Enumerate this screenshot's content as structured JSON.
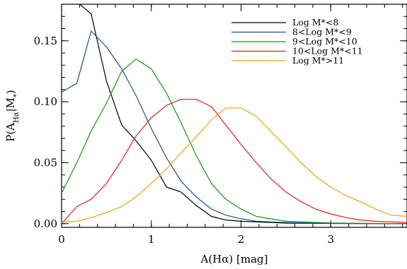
{
  "chart_data": {
    "type": "line",
    "xlabel": "A(Hα) [mag]",
    "ylabel": "P(A_Hα|M_*)",
    "xlim": [
      0,
      3.85
    ],
    "ylim": [
      -0.003,
      0.18
    ],
    "x_ticks": [
      {
        "value": 0,
        "label": "0"
      },
      {
        "value": 1,
        "label": "1"
      },
      {
        "value": 2,
        "label": "2"
      },
      {
        "value": 3,
        "label": "3"
      }
    ],
    "y_ticks": [
      {
        "value": 0.0,
        "label": "0.00"
      },
      {
        "value": 0.05,
        "label": "0.05"
      },
      {
        "value": 0.1,
        "label": "0.10"
      },
      {
        "value": 0.15,
        "label": "0.15"
      }
    ],
    "x_minor_step": 0.2,
    "y_minor_step": 0.01,
    "grid": false,
    "legend_position": "top-right",
    "series": [
      {
        "name": "Log M*<8",
        "color": "#000000",
        "points": [
          [
            0,
            0.182
          ],
          [
            0.17,
            0.182
          ],
          [
            0.33,
            0.172
          ],
          [
            0.5,
            0.117
          ],
          [
            0.67,
            0.081
          ],
          [
            0.83,
            0.068
          ],
          [
            1.0,
            0.052
          ],
          [
            1.17,
            0.03
          ],
          [
            1.33,
            0.026
          ],
          [
            1.5,
            0.015
          ],
          [
            1.67,
            0.006
          ],
          [
            1.83,
            0.003
          ],
          [
            2.0,
            0.002
          ],
          [
            2.5,
            0.0005
          ],
          [
            3.0,
            0.0002
          ],
          [
            3.85,
            0.0
          ]
        ]
      },
      {
        "name": "8<Log M*<9",
        "color": "#1f4e8c",
        "points": [
          [
            0,
            0.108
          ],
          [
            0.17,
            0.115
          ],
          [
            0.33,
            0.158
          ],
          [
            0.5,
            0.145
          ],
          [
            0.67,
            0.127
          ],
          [
            0.83,
            0.105
          ],
          [
            1.0,
            0.078
          ],
          [
            1.17,
            0.054
          ],
          [
            1.33,
            0.035
          ],
          [
            1.5,
            0.022
          ],
          [
            1.67,
            0.012
          ],
          [
            1.83,
            0.007
          ],
          [
            2.0,
            0.004
          ],
          [
            2.17,
            0.002
          ],
          [
            2.5,
            0.001
          ],
          [
            3.0,
            0.0003
          ],
          [
            3.85,
            0.0
          ]
        ]
      },
      {
        "name": "9<Log M*<10",
        "color": "#139613",
        "points": [
          [
            0,
            0.025
          ],
          [
            0.17,
            0.05
          ],
          [
            0.33,
            0.076
          ],
          [
            0.5,
            0.099
          ],
          [
            0.67,
            0.125
          ],
          [
            0.83,
            0.135
          ],
          [
            1.0,
            0.127
          ],
          [
            1.17,
            0.107
          ],
          [
            1.33,
            0.083
          ],
          [
            1.5,
            0.056
          ],
          [
            1.67,
            0.033
          ],
          [
            1.83,
            0.02
          ],
          [
            2.0,
            0.012
          ],
          [
            2.17,
            0.006
          ],
          [
            2.33,
            0.004
          ],
          [
            2.5,
            0.002
          ],
          [
            3.0,
            0.0006
          ],
          [
            3.85,
            0.0
          ]
        ]
      },
      {
        "name": "10<Log M*<11",
        "color": "#dd1f1f",
        "points": [
          [
            0,
            0.0
          ],
          [
            0.17,
            0.014
          ],
          [
            0.33,
            0.02
          ],
          [
            0.5,
            0.033
          ],
          [
            0.67,
            0.052
          ],
          [
            0.83,
            0.072
          ],
          [
            1.0,
            0.087
          ],
          [
            1.17,
            0.097
          ],
          [
            1.33,
            0.102
          ],
          [
            1.5,
            0.102
          ],
          [
            1.67,
            0.096
          ],
          [
            1.83,
            0.081
          ],
          [
            2.0,
            0.065
          ],
          [
            2.17,
            0.05
          ],
          [
            2.33,
            0.037
          ],
          [
            2.5,
            0.026
          ],
          [
            2.67,
            0.018
          ],
          [
            2.83,
            0.012
          ],
          [
            3.0,
            0.008
          ],
          [
            3.17,
            0.005
          ],
          [
            3.33,
            0.003
          ],
          [
            3.5,
            0.002
          ],
          [
            3.85,
            0.001
          ]
        ]
      },
      {
        "name": "Log M*>11",
        "color": "#f0a010",
        "points": [
          [
            0,
            0.001
          ],
          [
            0.17,
            0.002
          ],
          [
            0.33,
            0.005
          ],
          [
            0.5,
            0.009
          ],
          [
            0.67,
            0.014
          ],
          [
            0.83,
            0.022
          ],
          [
            1.0,
            0.033
          ],
          [
            1.17,
            0.045
          ],
          [
            1.33,
            0.058
          ],
          [
            1.5,
            0.071
          ],
          [
            1.67,
            0.085
          ],
          [
            1.83,
            0.095
          ],
          [
            2.0,
            0.095
          ],
          [
            2.17,
            0.088
          ],
          [
            2.33,
            0.076
          ],
          [
            2.5,
            0.063
          ],
          [
            2.67,
            0.05
          ],
          [
            2.83,
            0.039
          ],
          [
            3.0,
            0.03
          ],
          [
            3.17,
            0.023
          ],
          [
            3.33,
            0.018
          ],
          [
            3.5,
            0.012
          ],
          [
            3.67,
            0.007
          ],
          [
            3.85,
            0.006
          ]
        ]
      }
    ]
  }
}
